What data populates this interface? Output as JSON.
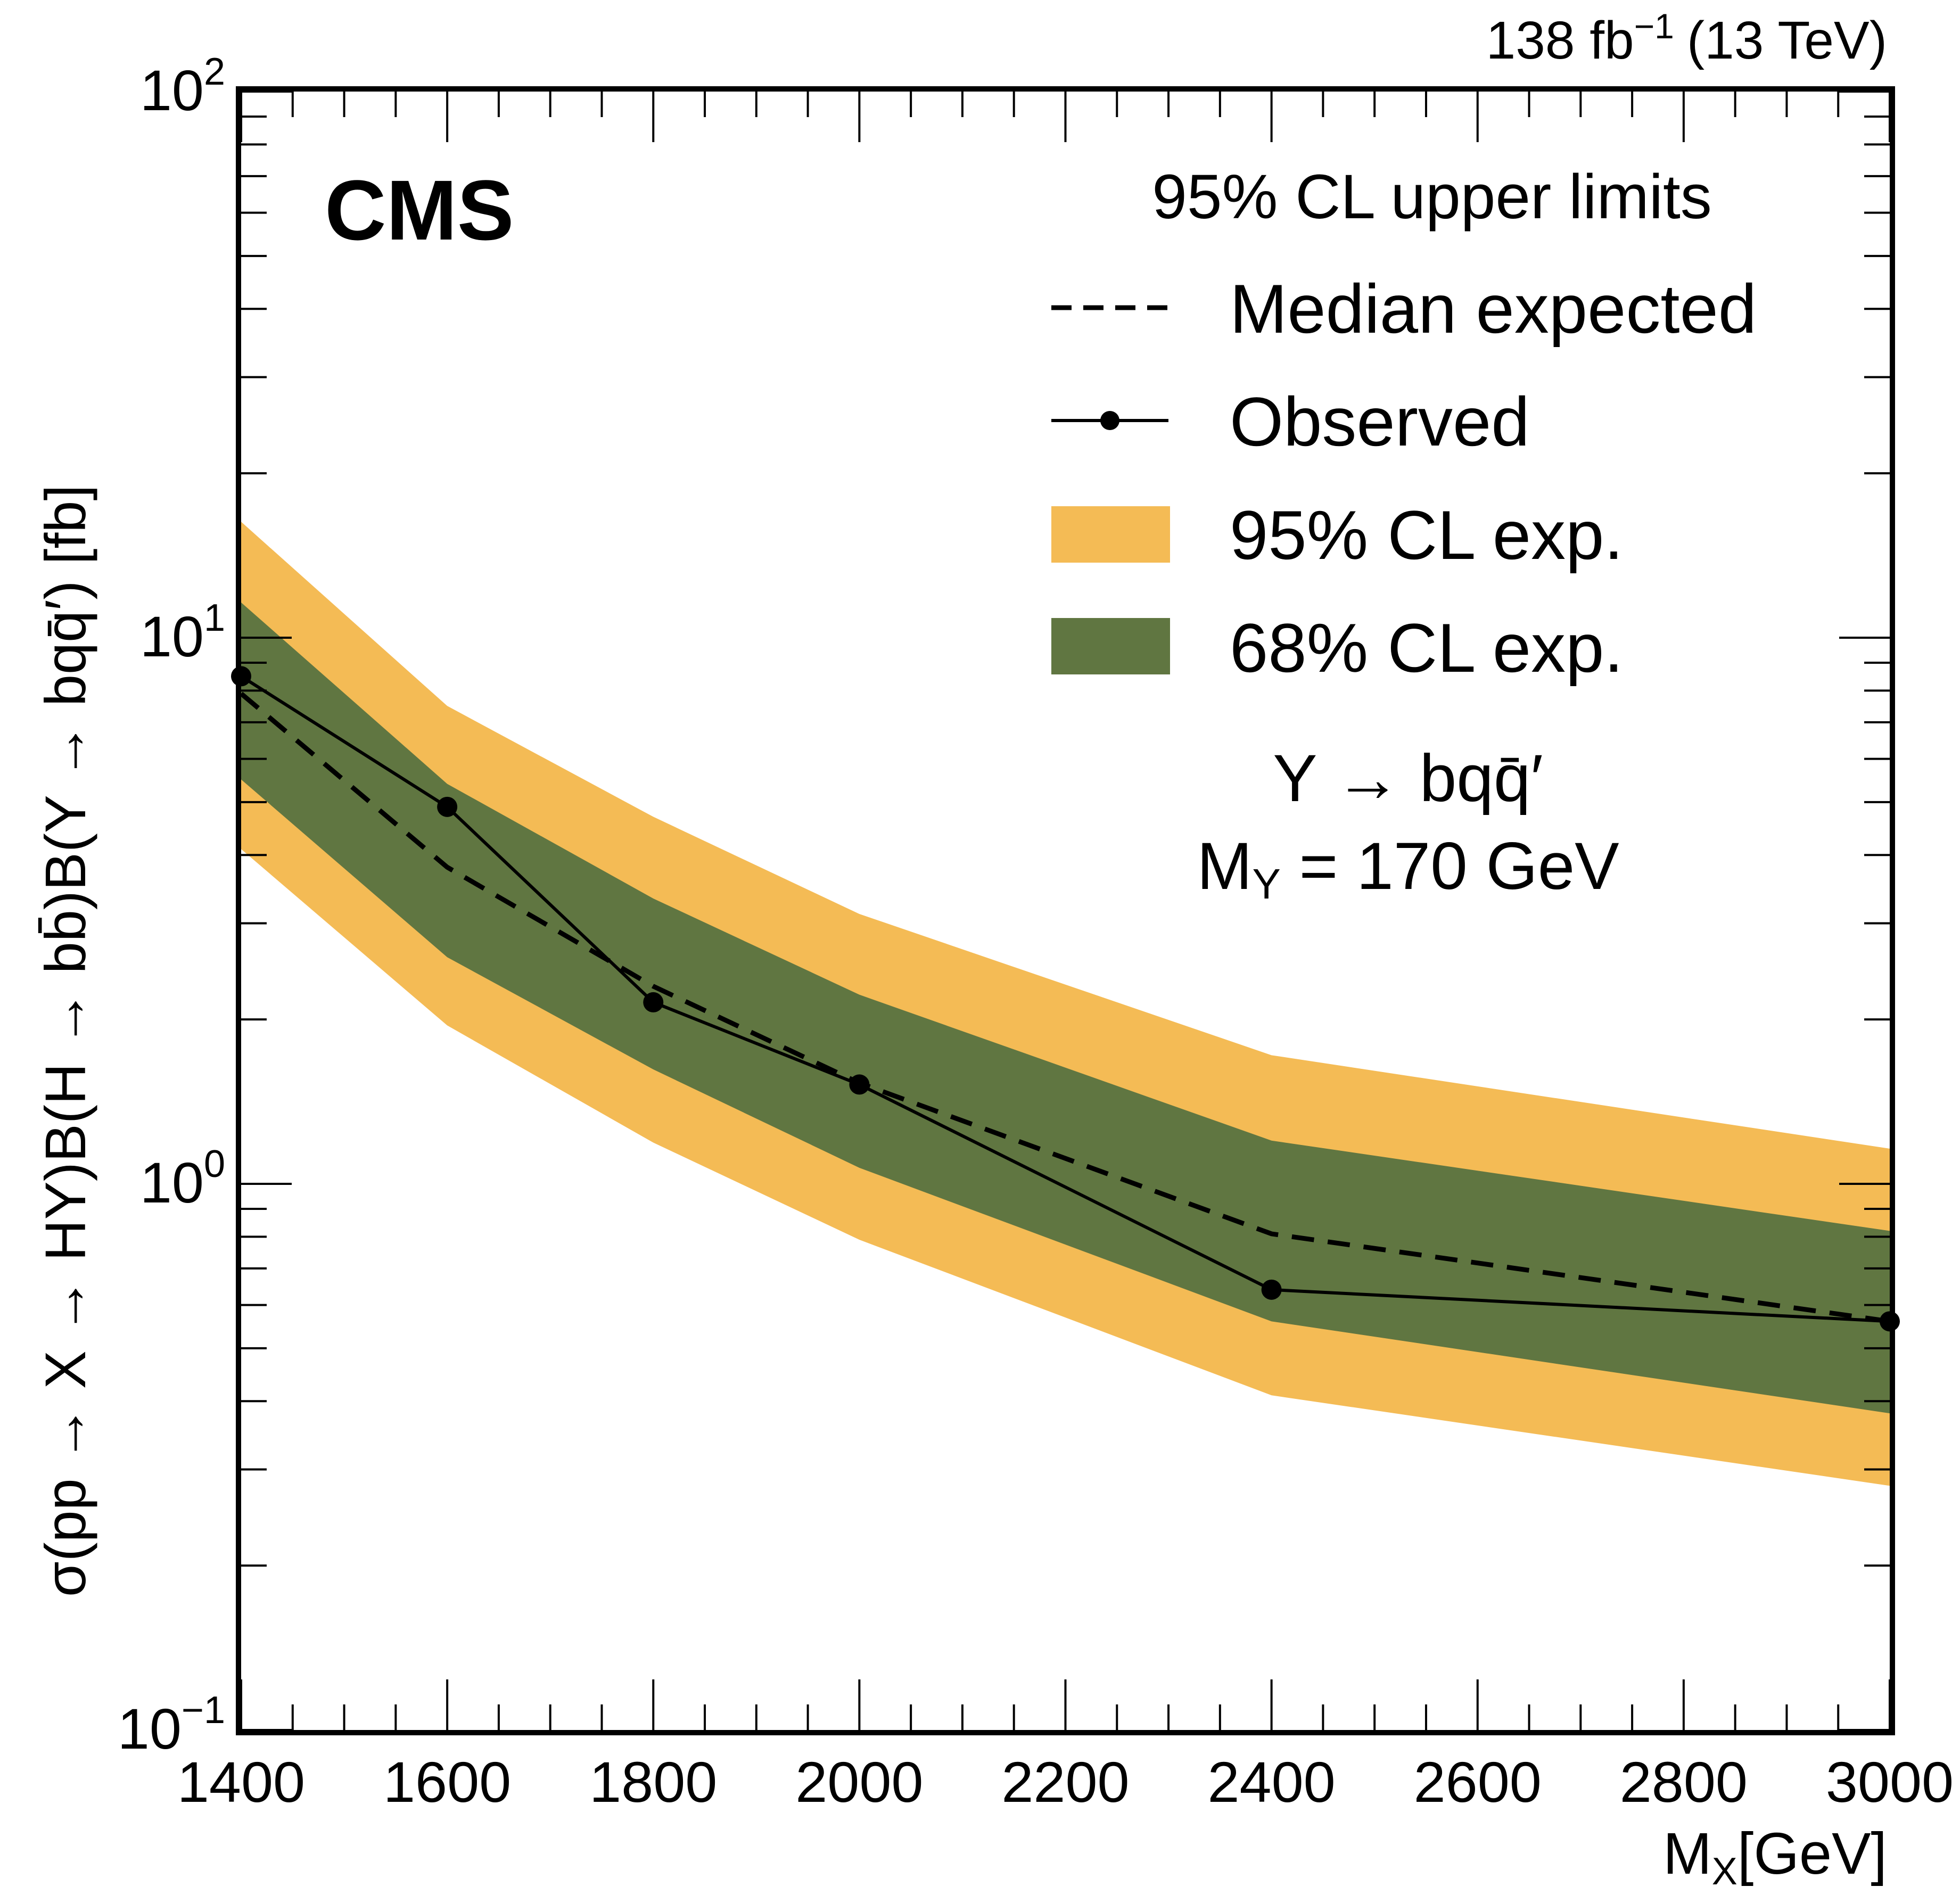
{
  "chart_data": {
    "type": "line",
    "experiment_label": "CMS",
    "lumi_label": {
      "value": "138 fb",
      "superscript": "−1",
      "energy": "(13 TeV)"
    },
    "xlabel": {
      "main": "M",
      "sub": "X",
      "unit": "[GeV]"
    },
    "ylabel": "σ(pp → X → HY)B(H → bb̄)B(Y → bqq̄′)  [fb]",
    "xlim": [
      1400,
      3000
    ],
    "ylim": [
      0.1,
      100
    ],
    "yscale": "log",
    "x_ticks": [
      1400,
      1600,
      1800,
      2000,
      2200,
      2400,
      2600,
      2800,
      3000
    ],
    "x_tick_labels": [
      "1400",
      "1600",
      "1800",
      "2000",
      "2200",
      "2400",
      "2600",
      "2800",
      "3000"
    ],
    "y_ticks": [
      {
        "base": "10",
        "exp": "−1",
        "value": 0.1
      },
      {
        "base": "10",
        "exp": "0",
        "value": 1
      },
      {
        "base": "10",
        "exp": "1",
        "value": 10
      },
      {
        "base": "10",
        "exp": "2",
        "value": 100
      }
    ],
    "grid": false,
    "legend_title": "95% CL upper limits",
    "legend_position": "top-right",
    "legend": [
      {
        "key": "expected",
        "label": "Median expected",
        "style": "dashed-line"
      },
      {
        "key": "observed",
        "label": "Observed",
        "style": "line-marker"
      },
      {
        "key": "band95",
        "label": "95% CL exp.",
        "style": "fill"
      },
      {
        "key": "band68",
        "label": "68% CL exp.",
        "style": "fill"
      }
    ],
    "annotation": {
      "line1": "Y → bqq̄′",
      "line2_main": "M",
      "line2_sub": "Y",
      "line2_rest": " = 170 GeV"
    },
    "colors": {
      "band95": "#F4BB55",
      "band68": "#607641",
      "line": "#000000"
    },
    "x": [
      1400,
      1600,
      1800,
      2000,
      2400,
      3000
    ],
    "series": [
      {
        "name": "Observed",
        "values": [
          8.5,
          4.9,
          2.15,
          1.52,
          0.64,
          0.56
        ]
      },
      {
        "name": "Median expected",
        "values": [
          7.9,
          3.8,
          2.3,
          1.53,
          0.81,
          0.56
        ]
      },
      {
        "name": "68% CL exp. low",
        "values": [
          5.5,
          2.6,
          1.62,
          1.07,
          0.56,
          0.38
        ]
      },
      {
        "name": "68% CL exp. high",
        "values": [
          11.6,
          5.4,
          3.33,
          2.22,
          1.2,
          0.82
        ]
      },
      {
        "name": "95% CL exp. low",
        "values": [
          4.1,
          1.95,
          1.19,
          0.79,
          0.41,
          0.28
        ]
      },
      {
        "name": "95% CL exp. high",
        "values": [
          16.3,
          7.5,
          4.7,
          3.12,
          1.72,
          1.16
        ]
      }
    ]
  }
}
